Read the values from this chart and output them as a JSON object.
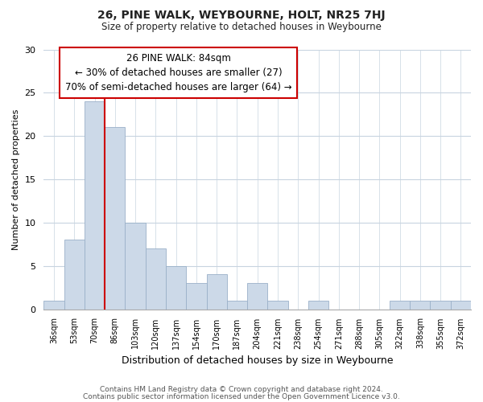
{
  "title": "26, PINE WALK, WEYBOURNE, HOLT, NR25 7HJ",
  "subtitle": "Size of property relative to detached houses in Weybourne",
  "xlabel": "Distribution of detached houses by size in Weybourne",
  "ylabel": "Number of detached properties",
  "bin_labels": [
    "36sqm",
    "53sqm",
    "70sqm",
    "86sqm",
    "103sqm",
    "120sqm",
    "137sqm",
    "154sqm",
    "170sqm",
    "187sqm",
    "204sqm",
    "221sqm",
    "238sqm",
    "254sqm",
    "271sqm",
    "288sqm",
    "305sqm",
    "322sqm",
    "338sqm",
    "355sqm",
    "372sqm"
  ],
  "bar_heights": [
    1,
    8,
    24,
    21,
    10,
    7,
    5,
    3,
    4,
    1,
    3,
    1,
    0,
    1,
    0,
    0,
    0,
    1,
    1,
    1,
    1
  ],
  "bar_color": "#ccd9e8",
  "bar_edge_color": "#9ab0c8",
  "ylim": [
    0,
    30
  ],
  "yticks": [
    0,
    5,
    10,
    15,
    20,
    25,
    30
  ],
  "vline_color": "#cc0000",
  "annotation_text": "26 PINE WALK: 84sqm\n← 30% of detached houses are smaller (27)\n70% of semi-detached houses are larger (64) →",
  "footer1": "Contains HM Land Registry data © Crown copyright and database right 2024.",
  "footer2": "Contains public sector information licensed under the Open Government Licence v3.0.",
  "bg_color": "#ffffff",
  "grid_color": "#c8d4e0",
  "annotation_box_color": "#ffffff",
  "annotation_box_edge": "#cc0000"
}
